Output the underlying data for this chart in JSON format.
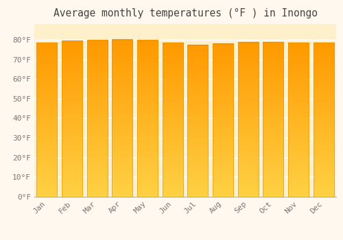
{
  "title": "Average monthly temperatures (°F ) in Inongo",
  "months": [
    "Jan",
    "Feb",
    "Mar",
    "Apr",
    "May",
    "Jun",
    "Jul",
    "Aug",
    "Sep",
    "Oct",
    "Nov",
    "Dec"
  ],
  "values": [
    78.4,
    79.5,
    79.7,
    80.1,
    79.7,
    78.4,
    77.2,
    77.9,
    78.6,
    78.8,
    78.4,
    78.4
  ],
  "bar_color": "#FFA500",
  "bar_edge_color": "#E09000",
  "background_color": "#FFF8EE",
  "plot_bg_color": "#FFF0CC",
  "grid_color": "#FFFFFF",
  "ylim": [
    0,
    88
  ],
  "yticks": [
    0,
    10,
    20,
    30,
    40,
    50,
    60,
    70,
    80
  ],
  "ytick_labels": [
    "0°F",
    "10°F",
    "20°F",
    "30°F",
    "40°F",
    "50°F",
    "60°F",
    "70°F",
    "80°F"
  ],
  "title_fontsize": 10.5,
  "tick_fontsize": 8,
  "font_family": "monospace"
}
